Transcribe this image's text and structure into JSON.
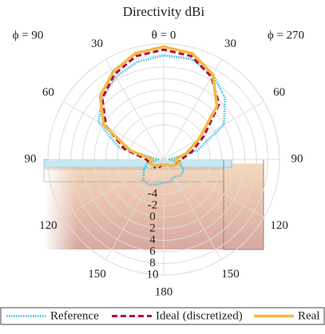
{
  "chart_data": {
    "type": "polar",
    "title": "Directivity dBi",
    "left_label": "ϕ = 90",
    "top_label": "θ = 0",
    "right_label": "ϕ = 270",
    "x": [
      -180,
      -165,
      -150,
      -135,
      -120,
      -105,
      -90,
      -75,
      -60,
      -45,
      -30,
      -15,
      0,
      15,
      30,
      45,
      60,
      75,
      90,
      105,
      120,
      135,
      150,
      165,
      180
    ],
    "series": [
      {
        "name": "Reference",
        "color": "#4cc2ea",
        "style": "dotted",
        "values": [
          -6,
          -5.5,
          -5,
          -5,
          -6,
          -7,
          -9,
          -2,
          3,
          5,
          6.5,
          7.5,
          8,
          8,
          7,
          5,
          2,
          -4,
          -9,
          -7,
          -6,
          -6,
          -6.5,
          -6,
          -6
        ]
      },
      {
        "name": "Ideal (discretized)",
        "color": "#b3103c",
        "style": "dashed",
        "values": [
          -9,
          -9,
          -8.5,
          -8,
          -8,
          -7.5,
          -7,
          -3,
          1.5,
          5,
          7,
          8.5,
          9,
          8.5,
          6.5,
          3.5,
          -2,
          -5,
          -7,
          -7.5,
          -8,
          -8.5,
          -9,
          -9,
          -9
        ]
      },
      {
        "name": "Real",
        "color": "#f6b843",
        "style": "solid",
        "values": [
          -9,
          -9,
          -9,
          -8.5,
          -8,
          -7.5,
          -8,
          -4,
          2,
          5.5,
          7.5,
          9,
          9.5,
          9,
          7,
          3,
          -3,
          -6,
          -8,
          -7,
          -8,
          -8.5,
          -9,
          -9,
          -9
        ]
      }
    ],
    "rlim": [
      -10,
      10
    ],
    "rticks": [
      -4,
      -2,
      0,
      2,
      4,
      6,
      8,
      10
    ],
    "thetaticks": [
      30,
      60,
      90,
      120,
      150,
      180
    ],
    "grid": true
  }
}
